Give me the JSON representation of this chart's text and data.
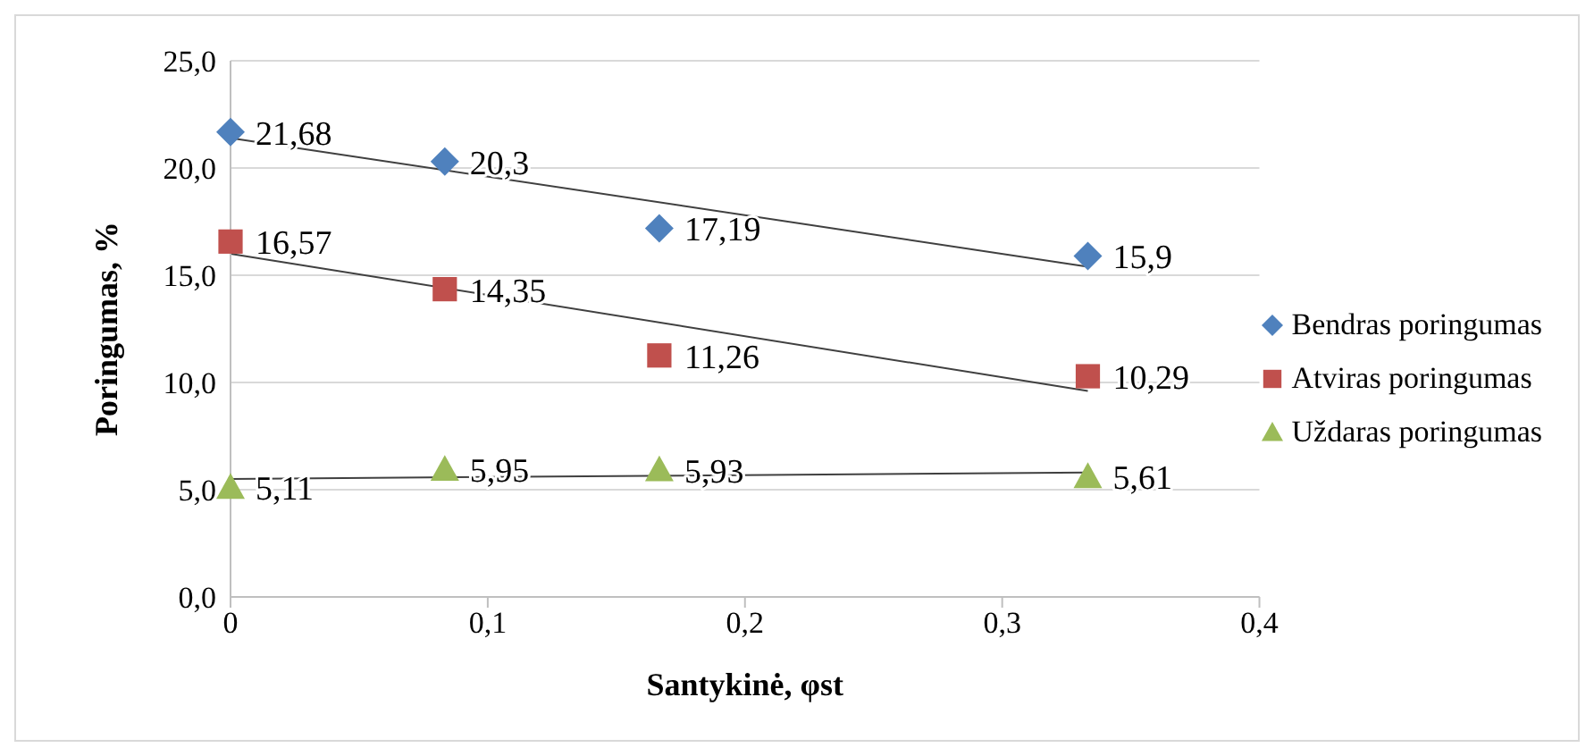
{
  "chart_data": {
    "type": "scatter",
    "xlabel": "Santykinė, φst",
    "ylabel": "Poringumas, %",
    "xlim": [
      0,
      0.4
    ],
    "xticks": [
      0,
      {
        "value": 0.1,
        "label": "0,1"
      },
      {
        "value": 0.2,
        "label": "0,2"
      },
      {
        "value": 0.3,
        "label": "0,3"
      },
      {
        "value": 0.4,
        "label": "0,4"
      }
    ],
    "ylim": [
      0,
      25
    ],
    "yticks": [
      {
        "value": 0,
        "label": "0,0"
      },
      {
        "value": 5,
        "label": "5,0"
      },
      {
        "value": 10,
        "label": "10,0"
      },
      {
        "value": 15,
        "label": "15,0"
      },
      {
        "value": 20,
        "label": "20,0"
      },
      {
        "value": 25,
        "label": "25,0"
      }
    ],
    "grid": "y",
    "legend": "right",
    "series": [
      {
        "name": "Bendras poringumas",
        "marker": "diamond",
        "color": "#4f81bd",
        "x": [
          0,
          0.0833,
          0.1667,
          0.3333
        ],
        "values": [
          21.68,
          20.3,
          17.19,
          15.9
        ],
        "value_labels": [
          "21,68",
          "20,3",
          "17,19",
          "15,9"
        ]
      },
      {
        "name": "Atviras poringumas",
        "marker": "square",
        "color": "#c0504d",
        "x": [
          0,
          0.0833,
          0.1667,
          0.3333
        ],
        "values": [
          16.57,
          14.35,
          11.26,
          10.29
        ],
        "value_labels": [
          "16,57",
          "14,35",
          "11,26",
          "10,29"
        ]
      },
      {
        "name": "Uždaras poringumas",
        "marker": "triangle",
        "color": "#9bbb59",
        "x": [
          0,
          0.0833,
          0.1667,
          0.3333
        ],
        "values": [
          5.11,
          5.95,
          5.93,
          5.61
        ],
        "value_labels": [
          "5,11",
          "5,95",
          "5,93",
          "5,61"
        ]
      },
      {
        "type": "line",
        "marker": "none",
        "color": "#404040",
        "x": [
          0,
          0.3333
        ],
        "values": [
          21.4,
          15.4
        ]
      },
      {
        "type": "line",
        "marker": "none",
        "color": "#404040",
        "x": [
          0,
          0.3333
        ],
        "values": [
          16.0,
          9.6
        ]
      },
      {
        "type": "line",
        "marker": "none",
        "color": "#404040",
        "x": [
          0,
          0.3333
        ],
        "values": [
          5.5,
          5.8
        ]
      }
    ]
  }
}
